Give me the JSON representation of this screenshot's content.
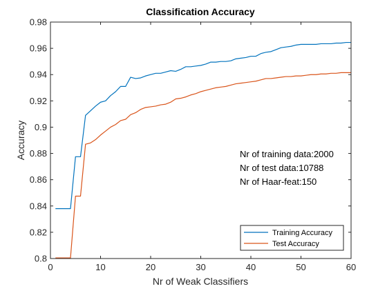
{
  "chart_data": {
    "type": "line",
    "title": "Classification Accuracy",
    "xlabel": "Nr of Weak Classifiers",
    "ylabel": "Accuracy",
    "xlim": [
      0,
      60
    ],
    "ylim": [
      0.8,
      0.98
    ],
    "xticks": [
      0,
      10,
      20,
      30,
      40,
      50,
      60
    ],
    "yticks": [
      0.8,
      0.82,
      0.84,
      0.86,
      0.88,
      0.9,
      0.92,
      0.94,
      0.96,
      0.98
    ],
    "ytick_labels": [
      "0.8",
      "0.82",
      "0.84",
      "0.86",
      "0.88",
      "0.9",
      "0.92",
      "0.94",
      "0.96",
      "0.98"
    ],
    "grid": false,
    "legend_position": "bottom-right",
    "annotations": [
      "Nr of training data:2000",
      "Nr of test data:10788",
      "Nr of Haar-feat:150"
    ],
    "x": [
      1,
      2,
      3,
      4,
      5,
      6,
      7,
      8,
      9,
      10,
      11,
      12,
      13,
      14,
      15,
      16,
      17,
      18,
      19,
      20,
      21,
      22,
      23,
      24,
      25,
      26,
      27,
      28,
      29,
      30,
      31,
      32,
      33,
      34,
      35,
      36,
      37,
      38,
      39,
      40,
      41,
      42,
      43,
      44,
      45,
      46,
      47,
      48,
      49,
      50,
      51,
      52,
      53,
      54,
      55,
      56,
      57,
      58,
      59,
      60
    ],
    "series": [
      {
        "name": "Training Accuracy",
        "color": "#0072BD",
        "values": [
          0.838,
          0.838,
          0.838,
          0.838,
          0.8775,
          0.8775,
          0.909,
          0.9125,
          0.916,
          0.919,
          0.92,
          0.924,
          0.927,
          0.931,
          0.931,
          0.938,
          0.937,
          0.9375,
          0.939,
          0.94,
          0.941,
          0.941,
          0.942,
          0.943,
          0.9425,
          0.944,
          0.946,
          0.946,
          0.9465,
          0.947,
          0.948,
          0.9495,
          0.9495,
          0.95,
          0.95,
          0.9505,
          0.952,
          0.9525,
          0.953,
          0.954,
          0.954,
          0.956,
          0.957,
          0.9575,
          0.959,
          0.9605,
          0.961,
          0.9615,
          0.9625,
          0.963,
          0.963,
          0.963,
          0.963,
          0.9635,
          0.9635,
          0.9635,
          0.964,
          0.964,
          0.9645,
          0.9645
        ]
      },
      {
        "name": "Test Accuracy",
        "color": "#D95319",
        "values": [
          0.8005,
          0.8005,
          0.8005,
          0.8005,
          0.8475,
          0.8475,
          0.887,
          0.888,
          0.8905,
          0.894,
          0.897,
          0.9,
          0.902,
          0.905,
          0.906,
          0.9095,
          0.911,
          0.9135,
          0.915,
          0.9155,
          0.916,
          0.917,
          0.9175,
          0.919,
          0.9215,
          0.922,
          0.923,
          0.9245,
          0.9255,
          0.927,
          0.928,
          0.929,
          0.93,
          0.9305,
          0.931,
          0.932,
          0.933,
          0.9335,
          0.934,
          0.9345,
          0.935,
          0.936,
          0.937,
          0.937,
          0.9375,
          0.938,
          0.9385,
          0.9385,
          0.939,
          0.939,
          0.9395,
          0.94,
          0.94,
          0.9405,
          0.9405,
          0.941,
          0.941,
          0.9415,
          0.9415,
          0.9415
        ]
      }
    ]
  }
}
